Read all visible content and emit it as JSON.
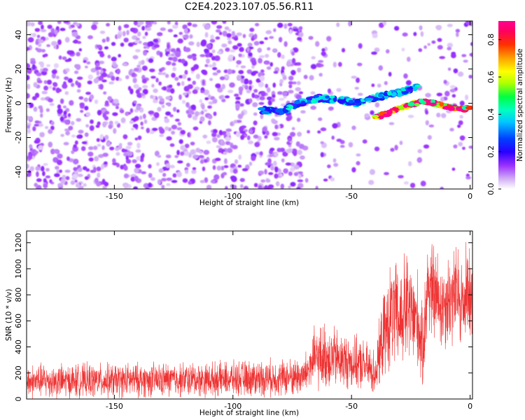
{
  "figure": {
    "title": "C2E4.2023.107.05.56.R11"
  },
  "chart_data": [
    {
      "type": "heatmap",
      "xlabel": "Height of straight line (km)",
      "ylabel": "Frequency (Hz)",
      "xlim": [
        -187,
        1
      ],
      "ylim": [
        -50,
        48
      ],
      "xticks": [
        -150,
        -100,
        -50,
        0
      ],
      "yticks": [
        -40,
        -20,
        0,
        20,
        40
      ],
      "colorbar": {
        "label": "Normalized spectral amplitude",
        "range": [
          0,
          0.9
        ],
        "ticks": [
          0.0,
          0.2,
          0.4,
          0.6,
          0.8
        ],
        "colormap": [
          "#ffffff",
          "#c89cf0",
          "#8a00ff",
          "#0000ff",
          "#00e5ff",
          "#00ff60",
          "#ffff00",
          "#ff8000",
          "#ff0000",
          "#ff0090"
        ]
      },
      "features": [
        {
          "name": "scattered noise",
          "x_range": [
            -187,
            -70
          ],
          "y_range": [
            -50,
            48
          ],
          "amplitude": 0.1
        },
        {
          "name": "signal trace upper",
          "points": [
            [
              -88,
              -4
            ],
            [
              -80,
              -5
            ],
            [
              -72,
              0
            ],
            [
              -65,
              3
            ],
            [
              -55,
              2
            ],
            [
              -48,
              0
            ],
            [
              -42,
              3
            ],
            [
              -35,
              5
            ],
            [
              -28,
              7
            ],
            [
              -22,
              10
            ]
          ],
          "amplitude": 0.3
        },
        {
          "name": "signal trace lower",
          "points": [
            [
              -40,
              -8
            ],
            [
              -35,
              -6
            ],
            [
              -30,
              -3
            ],
            [
              -25,
              -1
            ],
            [
              -20,
              1
            ],
            [
              -15,
              0
            ],
            [
              -10,
              -2
            ],
            [
              -5,
              -3
            ],
            [
              0,
              -3
            ]
          ],
          "amplitude": 0.75
        }
      ]
    },
    {
      "type": "line",
      "xlabel": "Height of straight line (km)",
      "ylabel": "SNR (10 * v/v)",
      "xlim": [
        -187,
        1
      ],
      "ylim": [
        0,
        1290
      ],
      "xticks": [
        -150,
        -100,
        -50,
        0
      ],
      "yticks": [
        0,
        200,
        400,
        600,
        800,
        1000,
        1200
      ],
      "color": "#ee3333",
      "series": [
        {
          "x": [
            -187,
            -180,
            -170,
            -160,
            -150,
            -140,
            -130,
            -120,
            -110,
            -100,
            -90,
            -80,
            -70,
            -66,
            -60,
            -55,
            -50,
            -45,
            -40,
            -37,
            -33,
            -30,
            -27,
            -25,
            -22,
            -20,
            -18,
            -15,
            -12,
            -10,
            -7,
            -5,
            -3,
            -1,
            1
          ],
          "y": [
            130,
            140,
            135,
            140,
            140,
            145,
            145,
            150,
            150,
            155,
            160,
            165,
            175,
            300,
            330,
            300,
            280,
            260,
            200,
            450,
            650,
            600,
            700,
            640,
            600,
            350,
            880,
            800,
            720,
            760,
            780,
            820,
            700,
            880,
            760
          ],
          "spread": [
            130,
            130,
            130,
            130,
            130,
            130,
            130,
            130,
            130,
            130,
            140,
            140,
            150,
            230,
            260,
            220,
            200,
            190,
            180,
            300,
            420,
            400,
            450,
            420,
            380,
            300,
            400,
            380,
            360,
            360,
            380,
            380,
            350,
            380,
            330
          ]
        }
      ]
    }
  ]
}
